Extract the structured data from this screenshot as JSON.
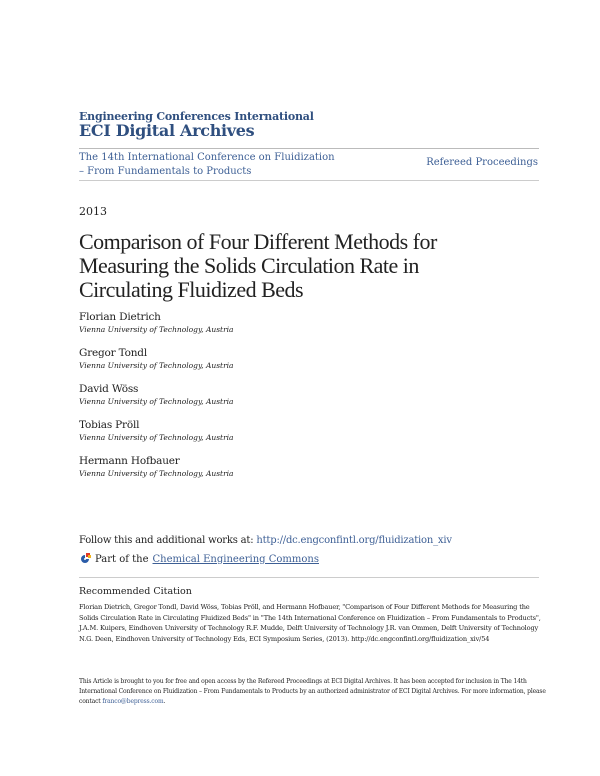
{
  "header": {
    "organization": "Engineering Conferences International",
    "archive": "ECI Digital Archives",
    "conference_line1": "The 14th International Conference on Fluidization",
    "conference_line2": "– From Fundamentals to Products",
    "series": "Refereed Proceedings"
  },
  "year": "2013",
  "title": "Comparison of Four Different Methods for Measuring the Solids Circulation Rate in Circulating Fluidized Beds",
  "authors": [
    {
      "name": "Florian Dietrich",
      "affiliation": "Vienna University of Technology, Austria"
    },
    {
      "name": "Gregor Tondl",
      "affiliation": "Vienna University of Technology, Austria"
    },
    {
      "name": "David Wöss",
      "affiliation": "Vienna University of Technology, Austria"
    },
    {
      "name": "Tobias Pröll",
      "affiliation": "Vienna University of Technology, Austria"
    },
    {
      "name": "Hermann Hofbauer",
      "affiliation": "Vienna University of Technology, Austria"
    }
  ],
  "follow": {
    "text": "Follow this and additional works at: ",
    "link": "http://dc.engconfintl.org/fluidization_xiv"
  },
  "part_of": {
    "text": "Part of the ",
    "link": "Chemical Engineering Commons",
    "icon": "bepress-commons-logo"
  },
  "recommended": {
    "heading": "Recommended Citation",
    "citation": "Florian Dietrich, Gregor Tondl, David Wöss, Tobias Pröll, and Hermann Hofbauer, \"Comparison of Four Different Methods for Measuring the Solids Circulation Rate in Circulating Fluidized Beds\" in \"The 14th International Conference on Fluidization – From Fundamentals to Products\", J.A.M. Kuipers, Eindhoven University of Technology R.F. Mudde, Delft University of Technology J.R. van Ommen, Delft University of Technology N.G. Deen, Eindhoven University of Technology Eds, ECI Symposium Series, (2013). http://dc.engconfintl.org/fluidization_xiv/54"
  },
  "footer": {
    "text": "This Article is brought to you for free and open access by the Refereed Proceedings at ECI Digital Archives. It has been accepted for inclusion in The 14th International Conference on Fluidization – From Fundamentals to Products by an authorized administrator of ECI Digital Archives. For more information, please contact ",
    "email": "franco@bepress.com",
    "end": "."
  },
  "colors": {
    "brand": "#2f4f7f",
    "link": "#3d5f95"
  }
}
